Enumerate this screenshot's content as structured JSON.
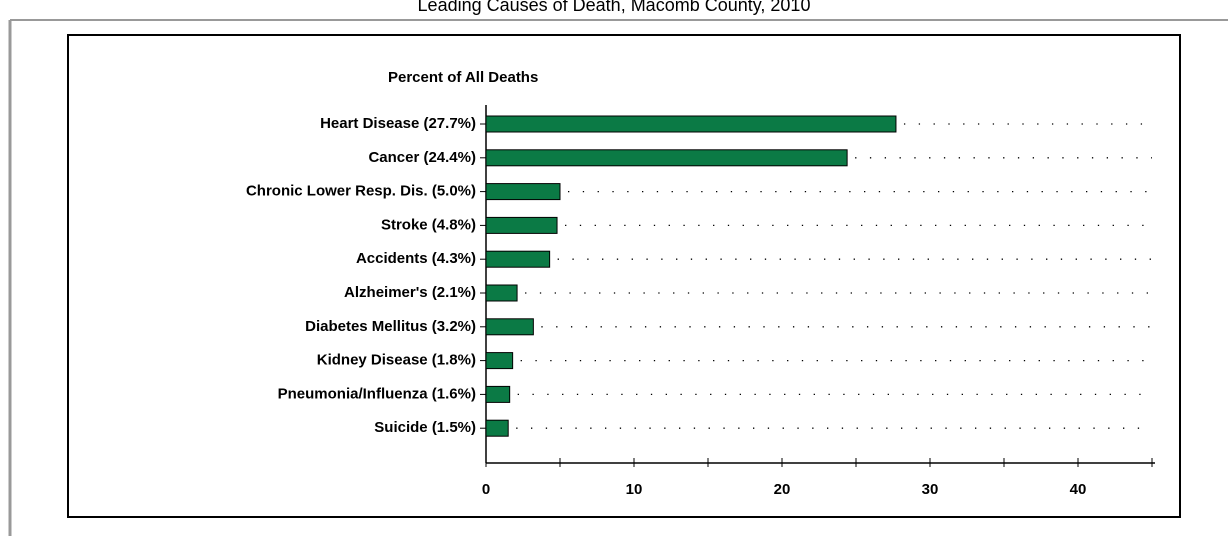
{
  "chart_data": {
    "type": "bar",
    "orientation": "horizontal",
    "title": "Leading Causes of Death, Macomb County, 2010",
    "subtitle": "Percent of All Deaths",
    "categories": [
      "Heart Disease (27.7%)",
      "Cancer (24.4%)",
      "Chronic Lower Resp. Dis. (5.0%)",
      "Stroke (4.8%)",
      "Accidents (4.3%)",
      "Alzheimer's (2.1%)",
      "Diabetes Mellitus (3.2%)",
      "Kidney Disease (1.8%)",
      "Pneumonia/Influenza (1.6%)",
      "Suicide (1.5%)"
    ],
    "values": [
      27.7,
      24.4,
      5.0,
      4.8,
      4.3,
      2.1,
      3.2,
      1.8,
      1.6,
      1.5
    ],
    "color": "#0b7a45",
    "xlim": [
      0,
      45
    ],
    "xticks": [
      0,
      10,
      20,
      30,
      40
    ],
    "xminorticks": [
      5,
      15,
      25,
      35,
      45
    ],
    "grid": true
  }
}
